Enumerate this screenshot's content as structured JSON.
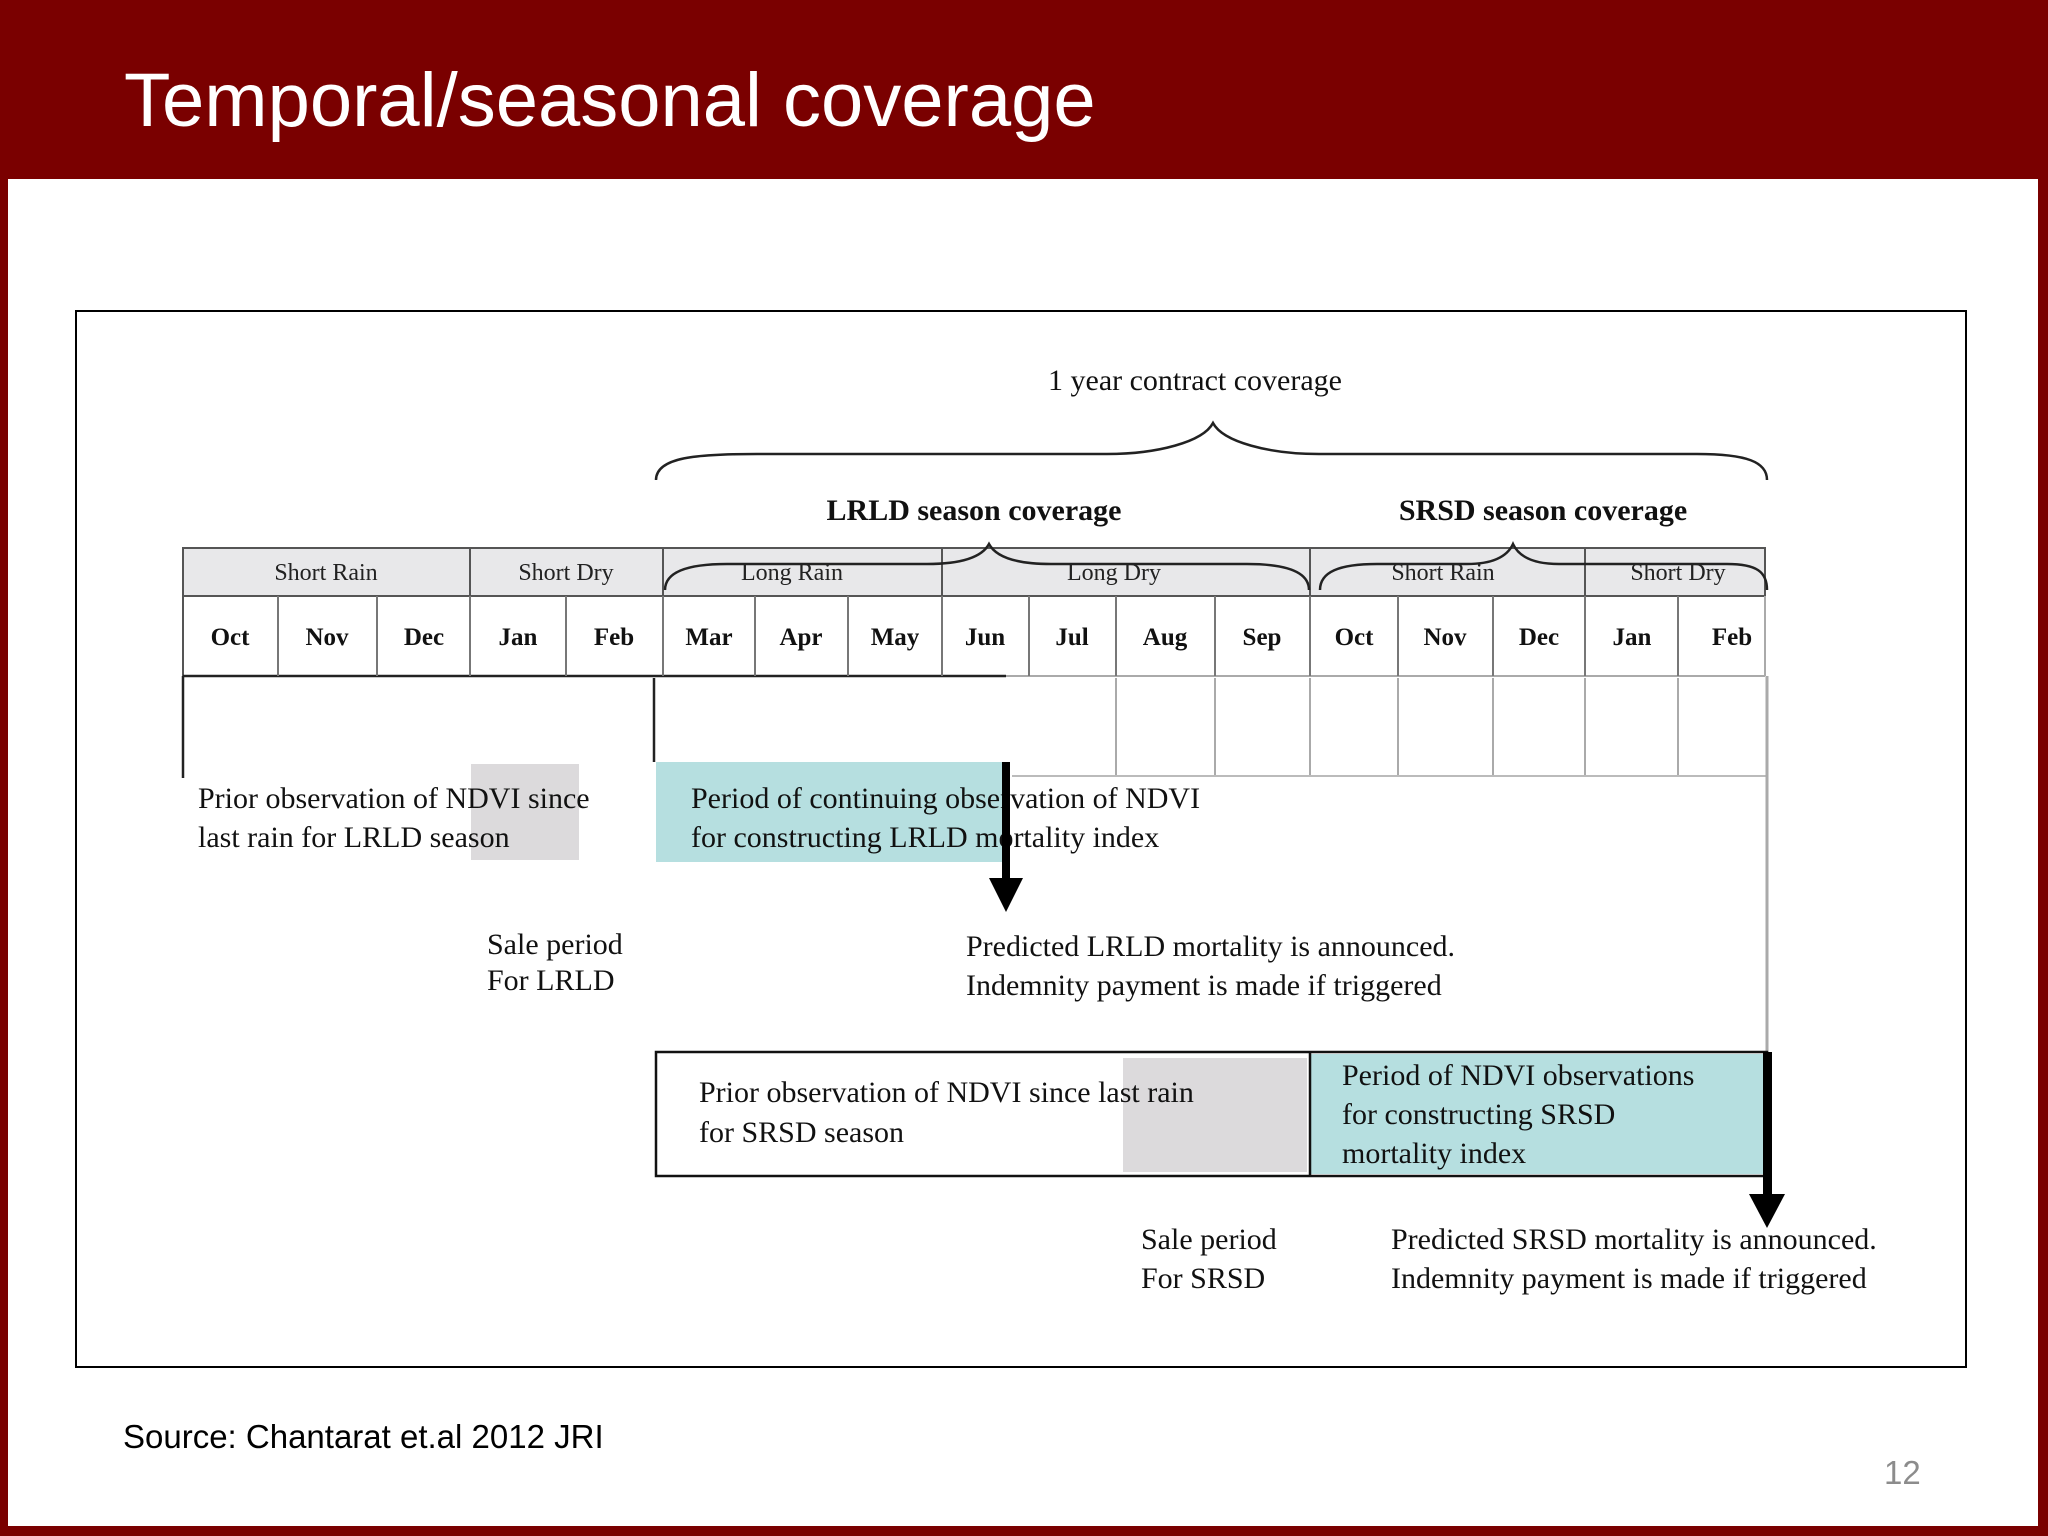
{
  "slide": {
    "title": "Temporal/seasonal coverage",
    "source": "Source: Chantarat et.al 2012 JRI",
    "page_number": "12"
  },
  "diagram": {
    "contract_label": "1 year contract coverage",
    "lrld_coverage_label": "LRLD season coverage",
    "srsd_coverage_label": "SRSD season coverage",
    "seasons": [
      "Short Rain",
      "Short Dry",
      "Long Rain",
      "Long Dry",
      "Short Rain",
      "Short Dry"
    ],
    "months": [
      "Oct",
      "Nov",
      "Dec",
      "Jan",
      "Feb",
      "Mar",
      "Apr",
      "May",
      "Jun",
      "Jul",
      "Aug",
      "Sep",
      "Oct",
      "Nov",
      "Dec",
      "Jan",
      "Feb"
    ],
    "lrld_prior": [
      "Prior observation of NDVI since",
      "last rain for LRLD season"
    ],
    "lrld_continuing": [
      "Period of continuing observation of  NDVI",
      "for constructing LRLD mortality index"
    ],
    "lrld_sale": [
      "Sale period",
      "For LRLD"
    ],
    "lrld_announce": [
      "Predicted LRLD mortality is announced.",
      "Indemnity payment is made if triggered"
    ],
    "srsd_prior": [
      "Prior observation of NDVI since last rain",
      "for SRSD season"
    ],
    "srsd_period": [
      "Period of NDVI observations",
      "for constructing SRSD",
      "mortality index"
    ],
    "srsd_sale": [
      "Sale period",
      "For SRSD"
    ],
    "srsd_announce": [
      "Predicted SRSD mortality is announced.",
      "Indemnity payment is made if triggered"
    ],
    "colors": {
      "header_band": "#7a0000",
      "season_header_fill": "#e8e8ea",
      "sale_period_fill": "#dcdadc",
      "observation_fill": "#b6dfe0"
    }
  }
}
